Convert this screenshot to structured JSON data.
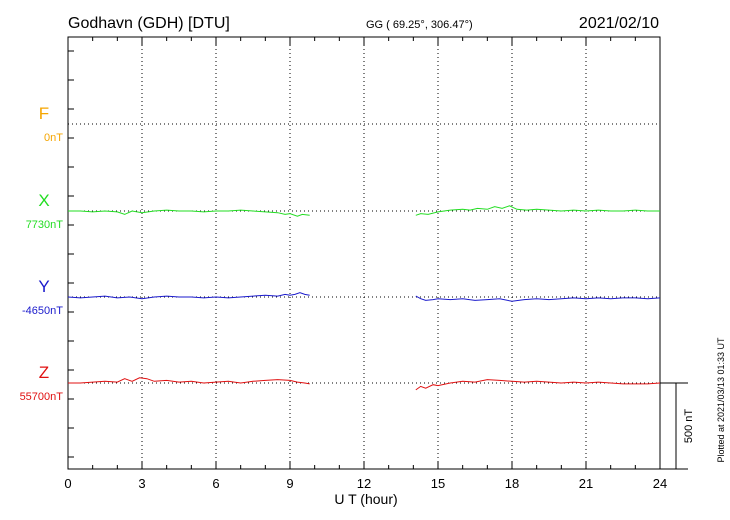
{
  "header": {
    "station": "Godhavn (GDH)  [DTU]",
    "coords": "GG ( 69.25°, 306.47°)",
    "date": "2021/02/10"
  },
  "footer": {
    "xlabel": "U T (hour)",
    "plotted": "Plotted at 2021/03/13 01:33 UT",
    "scale_label": "500 nT"
  },
  "colors": {
    "F": "#f5a500",
    "X": "#22dd22",
    "Y": "#1a1acc",
    "Z": "#e01010",
    "grid": "#000000"
  },
  "chart_data": {
    "type": "line",
    "xlabel": "U T (hour)",
    "xlim": [
      0,
      24
    ],
    "xticks": [
      0,
      3,
      6,
      9,
      12,
      15,
      18,
      21,
      24
    ],
    "scale_bar_nT": 500,
    "legend_placement": "left",
    "grid": true,
    "series": [
      {
        "name": "F",
        "baseline_label": "0nT",
        "x": [],
        "y": []
      },
      {
        "name": "X",
        "baseline_label": "7730nT",
        "x": [
          0,
          0.5,
          1,
          1.5,
          2,
          2.3,
          2.6,
          3,
          3.5,
          4,
          4.5,
          5,
          5.5,
          6,
          6.5,
          7,
          7.5,
          8,
          8.5,
          8.8,
          9,
          9.3,
          9.5,
          9.8,
          14.1,
          14.3,
          14.6,
          15,
          15.5,
          16,
          16.3,
          16.6,
          17,
          17.3,
          17.6,
          17.9,
          18.2,
          18.6,
          19,
          19.5,
          20,
          20.5,
          21,
          21.5,
          22,
          22.5,
          23,
          23.5,
          24
        ],
        "y": [
          0,
          0,
          -5,
          0,
          -5,
          -20,
          0,
          -10,
          0,
          5,
          0,
          0,
          -5,
          0,
          0,
          5,
          0,
          -5,
          -10,
          -20,
          -15,
          -30,
          -20,
          -25,
          -25,
          -15,
          -20,
          -5,
          5,
          10,
          5,
          15,
          10,
          25,
          15,
          30,
          10,
          5,
          10,
          5,
          0,
          5,
          0,
          5,
          0,
          0,
          5,
          0,
          0
        ]
      },
      {
        "name": "Y",
        "baseline_label": "-4650nT",
        "x": [
          0,
          0.5,
          1,
          1.5,
          2,
          2.5,
          3,
          3.5,
          4,
          4.5,
          5,
          5.5,
          6,
          6.5,
          7,
          7.5,
          8,
          8.5,
          8.8,
          9,
          9.2,
          9.4,
          9.6,
          9.8,
          14.1,
          14.3,
          14.5,
          14.8,
          15,
          15.5,
          16,
          16.5,
          17,
          17.5,
          18,
          18.5,
          19,
          19.5,
          20,
          20.5,
          21,
          21.5,
          22,
          22.5,
          23,
          23.5,
          24
        ],
        "y": [
          0,
          -5,
          0,
          5,
          -5,
          0,
          -10,
          0,
          5,
          0,
          0,
          -5,
          0,
          -5,
          0,
          5,
          10,
          5,
          15,
          10,
          15,
          25,
          15,
          10,
          5,
          -10,
          -20,
          -15,
          -10,
          -15,
          -10,
          -20,
          -15,
          -10,
          -25,
          -15,
          -10,
          -15,
          -10,
          -5,
          -10,
          -5,
          -10,
          -5,
          -5,
          -10,
          -5
        ]
      },
      {
        "name": "Z",
        "baseline_label": "55700nT",
        "x": [
          0,
          0.5,
          1,
          1.5,
          2,
          2.3,
          2.6,
          2.9,
          3.2,
          3.5,
          4,
          4.5,
          5,
          5.5,
          6,
          6.5,
          7,
          7.5,
          8,
          8.5,
          9,
          9.3,
          9.6,
          9.8,
          14.1,
          14.3,
          14.5,
          14.8,
          15,
          15.5,
          16,
          16.5,
          17,
          17.5,
          18,
          18.5,
          19,
          19.5,
          20,
          20.5,
          21,
          21.5,
          22,
          22.5,
          23,
          23.5,
          24
        ],
        "y": [
          0,
          0,
          5,
          10,
          5,
          25,
          10,
          30,
          25,
          10,
          15,
          5,
          10,
          0,
          5,
          10,
          0,
          10,
          15,
          20,
          15,
          5,
          0,
          -5,
          -40,
          -20,
          -30,
          -10,
          -15,
          0,
          10,
          5,
          20,
          15,
          10,
          5,
          10,
          5,
          0,
          5,
          0,
          5,
          0,
          -5,
          -5,
          -5,
          0
        ]
      }
    ]
  }
}
